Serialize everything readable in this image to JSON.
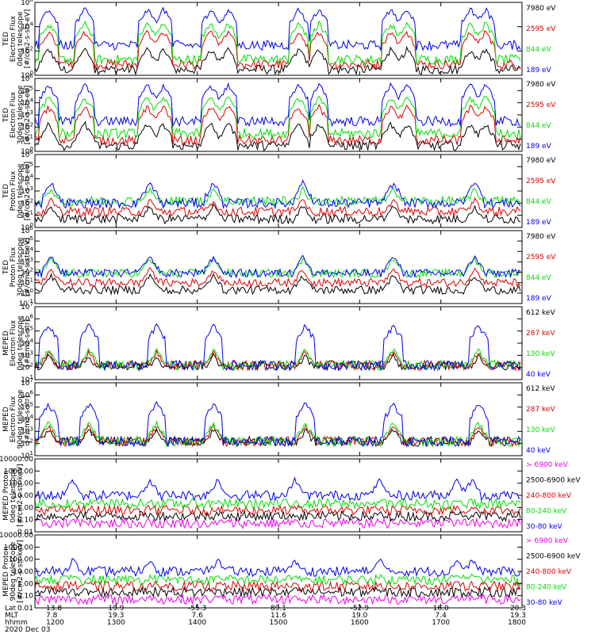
{
  "figure": {
    "date_label": "2020 Dec 03",
    "ephemeris": {
      "labels": [
        "Lat",
        "MLT",
        "hhmm"
      ],
      "columns": [
        [
          "13.8",
          "7.8",
          "1200"
        ],
        [
          "19.9",
          "19.3",
          "1300"
        ],
        [
          "-55.3",
          "7.6",
          "1400"
        ],
        [
          "89.1",
          "11.6",
          "1500"
        ],
        [
          "-52.9",
          "19.0",
          "1600"
        ],
        [
          "16.0",
          "7.4",
          "1700"
        ],
        [
          "20.3",
          "19.3",
          "1800"
        ]
      ]
    }
  },
  "colors": {
    "black": "#000000",
    "red": "#dd0000",
    "green": "#00dd00",
    "blue": "#0000ee",
    "magenta": "#ee00ee"
  },
  "chart_data": [
    {
      "type": "line",
      "title": "",
      "ylabel_lines": [
        "TED",
        "Electron Flux",
        "0deg telescope",
        "[#/cm2-s-str-eV]"
      ],
      "x": [
        1200,
        1300,
        1400,
        1500,
        1600,
        1700,
        1800
      ],
      "ylog": true,
      "ylim": [
        1,
        1000000
      ],
      "yticks": [
        {
          "v": 1,
          "t": "10",
          "e": "0"
        },
        {
          "v": 100,
          "t": "10",
          "e": "2"
        },
        {
          "v": 10000,
          "t": "10",
          "e": "4"
        },
        {
          "v": 1000000,
          "t": "10",
          "e": "6"
        }
      ],
      "series": [
        {
          "name": "7980 eV",
          "color": "black",
          "base": 3,
          "peak": 150
        },
        {
          "name": "2595 eV",
          "color": "red",
          "base": 8,
          "peak": 4000
        },
        {
          "name": "844 eV",
          "color": "green",
          "base": 20,
          "peak": 20000
        },
        {
          "name": "189 eV",
          "color": "blue",
          "base": 300,
          "peak": 300000
        }
      ],
      "events": [
        1210,
        1237,
        1323,
        1335,
        1410,
        1423,
        1515,
        1530,
        1623,
        1635,
        1722,
        1733
      ]
    },
    {
      "type": "line",
      "ylabel_lines": [
        "TED",
        "Electron Flux",
        "30deg telescope",
        "[#/cm2-s-str-eV]"
      ],
      "ylog": true,
      "ylim": [
        1,
        1000000
      ],
      "yticks": [
        {
          "v": 1,
          "t": "10",
          "e": "0"
        },
        {
          "v": 10,
          "t": "10",
          "e": "1"
        },
        {
          "v": 100,
          "t": "10",
          "e": "2"
        },
        {
          "v": 1000,
          "t": "10",
          "e": "3"
        },
        {
          "v": 10000,
          "t": "10",
          "e": "4"
        },
        {
          "v": 100000,
          "t": "10",
          "e": "5"
        },
        {
          "v": 1000000,
          "t": "10",
          "e": "6"
        }
      ],
      "series": [
        {
          "name": "7980 eV",
          "color": "black",
          "base": 3,
          "peak": 200
        },
        {
          "name": "2595 eV",
          "color": "red",
          "base": 8,
          "peak": 5000
        },
        {
          "name": "844 eV",
          "color": "green",
          "base": 30,
          "peak": 30000
        },
        {
          "name": "189 eV",
          "color": "blue",
          "base": 300,
          "peak": 300000
        }
      ],
      "events": [
        1210,
        1237,
        1323,
        1335,
        1410,
        1423,
        1515,
        1530,
        1623,
        1635,
        1722,
        1733
      ]
    },
    {
      "type": "line",
      "ylabel_lines": [
        "TED",
        "Proton Flux",
        "0deg telescope",
        "[#/cm2-s-str-eV]"
      ],
      "ylog": true,
      "ylim": [
        1,
        1000000
      ],
      "yticks": [
        {
          "v": 1,
          "t": "10",
          "e": "0"
        },
        {
          "v": 10,
          "t": "10",
          "e": "1"
        },
        {
          "v": 100,
          "t": "10",
          "e": "2"
        },
        {
          "v": 1000,
          "t": "10",
          "e": "3"
        },
        {
          "v": 10000,
          "t": "10",
          "e": "4"
        },
        {
          "v": 100000,
          "t": "10",
          "e": "5"
        },
        {
          "v": 1000000,
          "t": "10",
          "e": "6"
        }
      ],
      "series": [
        {
          "name": "7980 eV",
          "color": "black",
          "base": 5,
          "peak": 60
        },
        {
          "name": "2595 eV",
          "color": "red",
          "base": 20,
          "peak": 200
        },
        {
          "name": "844 eV",
          "color": "green",
          "base": 150,
          "peak": 1500
        },
        {
          "name": "189 eV",
          "color": "blue",
          "base": 100,
          "peak": 5000
        }
      ],
      "events": [
        1212,
        1325,
        1412,
        1518,
        1625,
        1725
      ]
    },
    {
      "type": "line",
      "ylabel_lines": [
        "TED",
        "Proton Flux",
        "30deg telescope",
        "[#/cm2-s-str-eV]"
      ],
      "ylog": true,
      "ylim": [
        0.1,
        1000000
      ],
      "yticks": [
        {
          "v": 0.1,
          "t": "10",
          "e": "-1"
        },
        {
          "v": 1,
          "t": "10",
          "e": "0"
        },
        {
          "v": 10,
          "t": "10",
          "e": "1"
        },
        {
          "v": 100,
          "t": "10",
          "e": "2"
        },
        {
          "v": 1000,
          "t": "10",
          "e": "3"
        },
        {
          "v": 10000,
          "t": "10",
          "e": "4"
        },
        {
          "v": 100000,
          "t": "10",
          "e": "5"
        },
        {
          "v": 1000000,
          "t": "10",
          "e": "6"
        }
      ],
      "series": [
        {
          "name": "7980 eV",
          "color": "black",
          "base": 2,
          "peak": 50
        },
        {
          "name": "2595 eV",
          "color": "red",
          "base": 10,
          "peak": 200
        },
        {
          "name": "844 eV",
          "color": "green",
          "base": 80,
          "peak": 2000
        },
        {
          "name": "189 eV",
          "color": "blue",
          "base": 80,
          "peak": 3000
        }
      ],
      "events": [
        1212,
        1325,
        1412,
        1518,
        1625,
        1725
      ]
    },
    {
      "type": "line",
      "ylabel_lines": [
        "MEPED",
        "Electron Flux",
        "0deg telescope",
        "[#/cm2-s-str]"
      ],
      "ylog": true,
      "ylim": [
        10,
        10000000
      ],
      "yticks": [
        {
          "v": 10,
          "t": "10",
          "e": "1"
        },
        {
          "v": 100,
          "t": "10",
          "e": "2"
        },
        {
          "v": 1000,
          "t": "10",
          "e": "3"
        },
        {
          "v": 10000,
          "t": "10",
          "e": "4"
        },
        {
          "v": 100000,
          "t": "10",
          "e": "5"
        },
        {
          "v": 1000000,
          "t": "10",
          "e": "6"
        },
        {
          "v": 10000000,
          "t": "10",
          "e": "7"
        }
      ],
      "series": [
        {
          "name": "612 keV",
          "color": "black",
          "base": 150,
          "peak": 1000
        },
        {
          "name": "287 keV",
          "color": "red",
          "base": 150,
          "peak": 2000
        },
        {
          "name": "130 keV",
          "color": "green",
          "base": 150,
          "peak": 3000
        },
        {
          "name": "40 keV",
          "color": "blue",
          "base": 150,
          "peak": 300000
        }
      ],
      "events": [
        1210,
        1240,
        1330,
        1412,
        1520,
        1625,
        1728
      ]
    },
    {
      "type": "line",
      "ylabel_lines": [
        "MEPED",
        "Electron Flux",
        "90deg telescope",
        "[#/cm2-s-str]"
      ],
      "ylog": true,
      "ylim": [
        10,
        10000000
      ],
      "yticks": [
        {
          "v": 10,
          "t": "10",
          "e": "1"
        },
        {
          "v": 100,
          "t": "10",
          "e": "2"
        },
        {
          "v": 1000,
          "t": "10",
          "e": "3"
        },
        {
          "v": 10000,
          "t": "10",
          "e": "4"
        },
        {
          "v": 100000,
          "t": "10",
          "e": "5"
        },
        {
          "v": 1000000,
          "t": "10",
          "e": "6"
        },
        {
          "v": 10000000,
          "t": "10",
          "e": "7"
        }
      ],
      "series": [
        {
          "name": "612 keV",
          "color": "black",
          "base": 150,
          "peak": 1500
        },
        {
          "name": "287 keV",
          "color": "red",
          "base": 150,
          "peak": 3000
        },
        {
          "name": "130 keV",
          "color": "green",
          "base": 150,
          "peak": 5000
        },
        {
          "name": "40 keV",
          "color": "blue",
          "base": 150,
          "peak": 200000
        }
      ],
      "events": [
        1210,
        1240,
        1330,
        1412,
        1520,
        1625,
        1728
      ]
    },
    {
      "type": "line",
      "ylabel_lines": [
        "MEPED Proton",
        "0deg telescope",
        "[#/cm2-s-str-keV]"
      ],
      "ylog": true,
      "ylim": [
        0.01,
        10000
      ],
      "yticks": [
        {
          "v": 0.01,
          "t": "0.01"
        },
        {
          "v": 0.1,
          "t": "0.10"
        },
        {
          "v": 1,
          "t": "1.00"
        },
        {
          "v": 10,
          "t": "10.00"
        },
        {
          "v": 100,
          "t": "100.00"
        },
        {
          "v": 1000,
          "t": "1000.00"
        },
        {
          "v": 10000,
          "t": "10000.00"
        }
      ],
      "series": [
        {
          "name": "> 6900 keV",
          "color": "magenta",
          "base": 0.05,
          "peak": 0.08
        },
        {
          "name": "2500-6900 keV",
          "color": "black",
          "base": 0.2,
          "peak": 0.3
        },
        {
          "name": "240-800 keV",
          "color": "red",
          "base": 0.6,
          "peak": 1
        },
        {
          "name": "80-240 keV",
          "color": "green",
          "base": 2,
          "peak": 4
        },
        {
          "name": "30-80 keV",
          "color": "blue",
          "base": 10,
          "peak": 200
        }
      ],
      "events": [
        1228,
        1325,
        1415,
        1512,
        1615,
        1712,
        1723
      ]
    },
    {
      "type": "line",
      "ylabel_lines": [
        "MEPED Proton",
        "90deg telescope",
        "[#/cm2-s-str-keV]"
      ],
      "ylog": true,
      "ylim": [
        0.01,
        10000
      ],
      "yticks": [
        {
          "v": 0.01,
          "t": "0.01"
        },
        {
          "v": 0.1,
          "t": "0.10"
        },
        {
          "v": 1,
          "t": "1.00"
        },
        {
          "v": 10,
          "t": "10.00"
        },
        {
          "v": 100,
          "t": "100.00"
        },
        {
          "v": 1000,
          "t": "1000.00"
        },
        {
          "v": 10000,
          "t": "10000.00"
        }
      ],
      "series": [
        {
          "name": "> 6900 keV",
          "color": "magenta",
          "base": 0.05,
          "peak": 0.08
        },
        {
          "name": "2500-6900 keV",
          "color": "black",
          "base": 0.2,
          "peak": 0.3
        },
        {
          "name": "240-800 keV",
          "color": "red",
          "base": 0.6,
          "peak": 1
        },
        {
          "name": "80-240 keV",
          "color": "green",
          "base": 2,
          "peak": 5
        },
        {
          "name": "30-80 keV",
          "color": "blue",
          "base": 10,
          "peak": 100
        }
      ],
      "events": [
        1228,
        1325,
        1415,
        1512,
        1615,
        1712,
        1723
      ]
    }
  ]
}
